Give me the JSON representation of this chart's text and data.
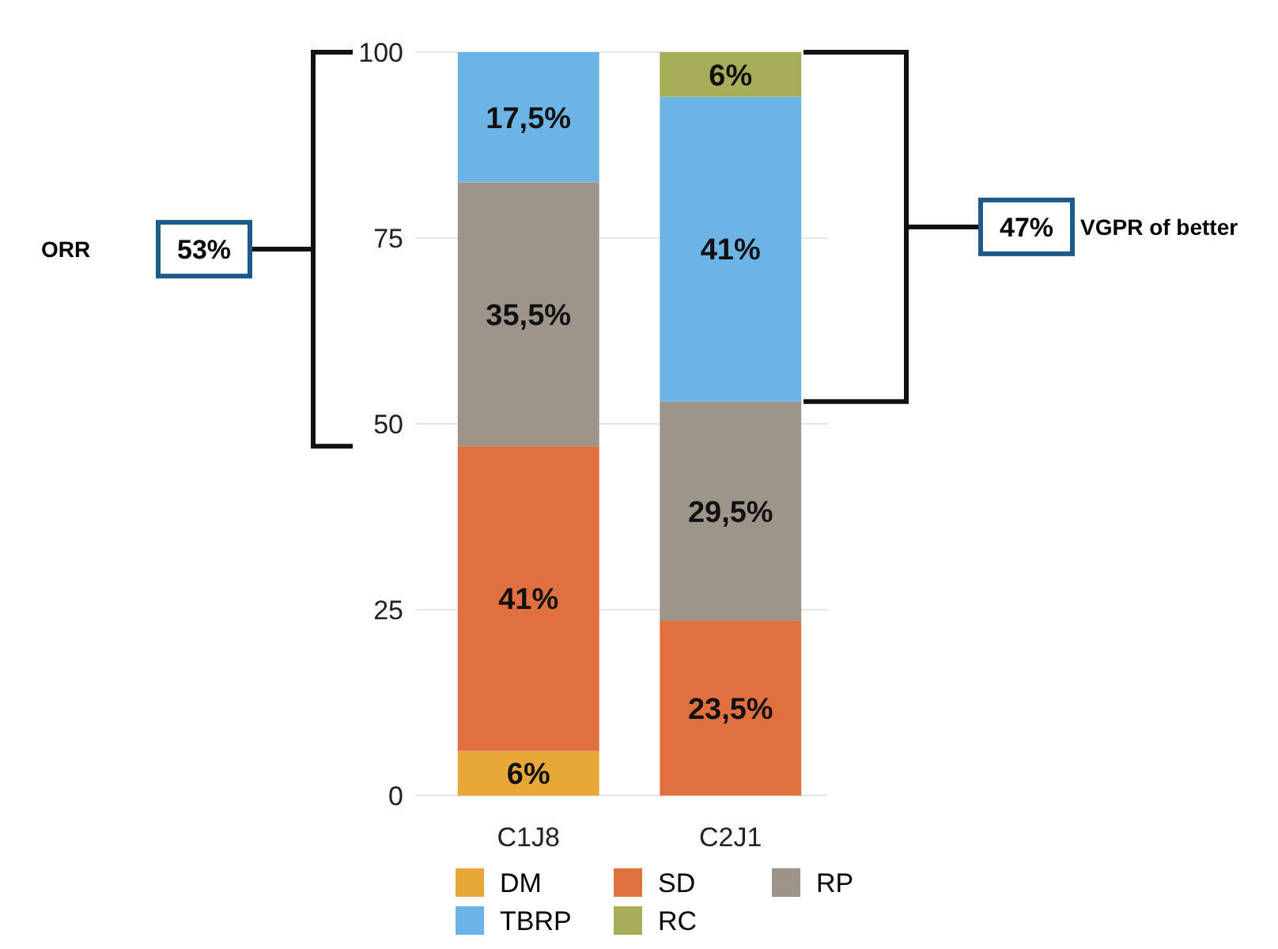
{
  "chart_data": {
    "type": "bar",
    "stacked": true,
    "categories": [
      "C1J8",
      "C2J1"
    ],
    "series": [
      {
        "name": "DM",
        "color": "#e8a838",
        "values": [
          6,
          0
        ],
        "value_labels": [
          "6%",
          null
        ]
      },
      {
        "name": "SD",
        "color": "#e07040",
        "values": [
          41,
          23.5
        ],
        "value_labels": [
          "41%",
          "23,5%"
        ]
      },
      {
        "name": "RP",
        "color": "#9e958a",
        "values": [
          35.5,
          29.5
        ],
        "value_labels": [
          "35,5%",
          "29,5%"
        ]
      },
      {
        "name": "TBRP",
        "color": "#6cb4e6",
        "values": [
          17.5,
          41
        ],
        "value_labels": [
          "17,5%",
          "41%"
        ]
      },
      {
        "name": "RC",
        "color": "#a8ad5a",
        "values": [
          0,
          6
        ],
        "value_labels": [
          null,
          "6%"
        ]
      }
    ],
    "ylim": [
      0,
      100
    ],
    "yticks": [
      0,
      25,
      50,
      75,
      100
    ],
    "grid": "y",
    "legend": "bottom",
    "annotations": [
      "ORR",
      "53%",
      "47%",
      "VGPR of better"
    ]
  }
}
